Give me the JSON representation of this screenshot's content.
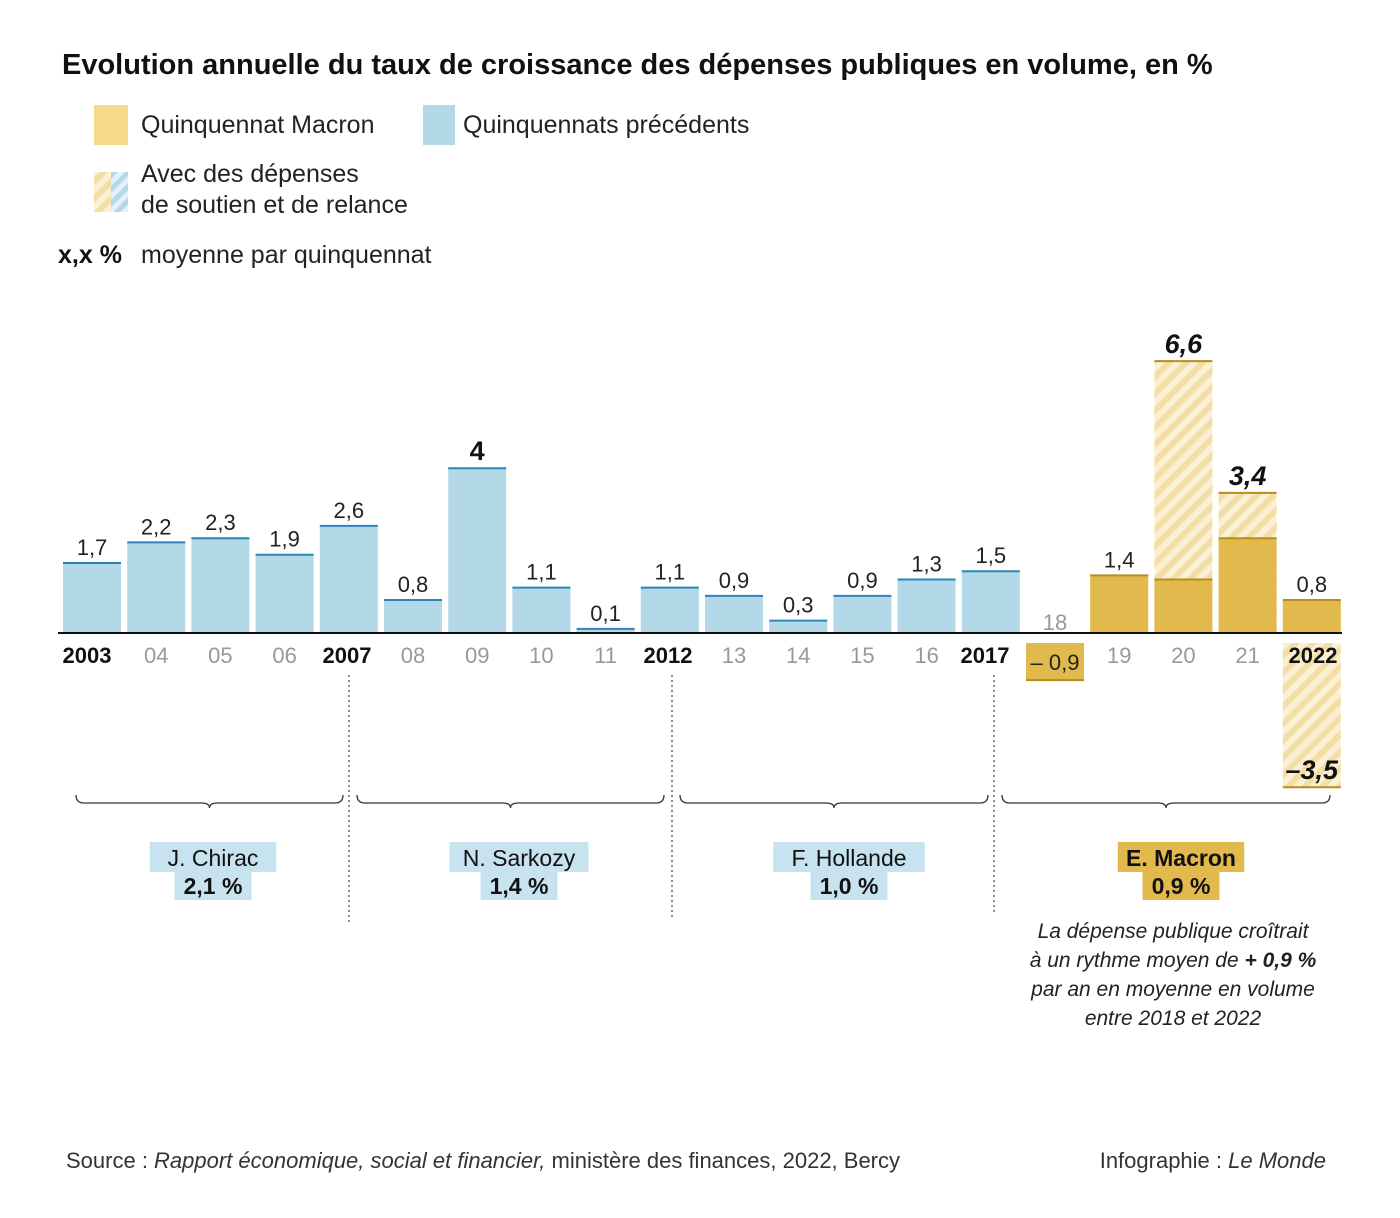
{
  "title": "Evolution annuelle du taux de croissance des dépenses publiques en volume, en %",
  "legend": {
    "macron": "Quinquennat Macron",
    "previous": "Quinquennats précédents",
    "support_line1": "Avec des dépenses",
    "support_line2": "de soutien et de relance",
    "avg_key": "x,x %",
    "avg_text": "moyenne par quinquennat"
  },
  "colors": {
    "previous": "#b3d8e8",
    "previous_line": "#2a86b8",
    "macron": "#e2b94c",
    "macron_light": "#f8e5b6",
    "macron_line": "#b58e1e",
    "tag_previous": "#c6e3ef",
    "tag_macron": "#e2b94c"
  },
  "chart_data": {
    "type": "bar",
    "title": "Evolution annuelle du taux de croissance des dépenses publiques en volume, en %",
    "x": [
      "2003",
      "04",
      "05",
      "06",
      "2007",
      "08",
      "09",
      "10",
      "11",
      "2012",
      "13",
      "14",
      "15",
      "16",
      "2017",
      "18",
      "19",
      "20",
      "21",
      "2022"
    ],
    "major_years": [
      "2003",
      "2007",
      "2012",
      "2017",
      "2022"
    ],
    "series": [
      {
        "name": "Quinquennats précédents",
        "values": [
          1.7,
          2.2,
          2.3,
          1.9,
          2.6,
          0.8,
          4,
          1.1,
          0.1,
          1.1,
          0.9,
          0.3,
          0.9,
          1.3,
          1.5,
          null,
          null,
          null,
          null,
          null
        ],
        "labels": [
          "1,7",
          "2,2",
          "2,3",
          "1,9",
          "2,6",
          "0,8",
          "4",
          "1,1",
          "0,1",
          "1,1",
          "0,9",
          "0,3",
          "0,9",
          "1,3",
          "1,5",
          "",
          "",
          "",
          "",
          ""
        ]
      },
      {
        "name": "Quinquennat Macron",
        "values": [
          null,
          null,
          null,
          null,
          null,
          null,
          null,
          null,
          null,
          null,
          null,
          null,
          null,
          null,
          null,
          -0.9,
          1.4,
          1.3,
          2.3,
          0.8
        ],
        "labels": [
          "",
          "",
          "",
          "",
          "",
          "",
          "",
          "",
          "",
          "",
          "",
          "",
          "",
          "",
          "",
          "– 0,9",
          "1,4",
          "",
          "",
          "0,8"
        ]
      },
      {
        "name": "Avec des dépenses de soutien et de relance",
        "values": [
          null,
          null,
          null,
          null,
          null,
          null,
          null,
          null,
          null,
          null,
          null,
          null,
          null,
          null,
          null,
          null,
          null,
          6.6,
          3.4,
          -3.5
        ],
        "labels": [
          "",
          "",
          "",
          "",
          "",
          "",
          "",
          "",
          "",
          "",
          "",
          "",
          "",
          "",
          "",
          "",
          "",
          "6,6",
          "3,4",
          "–3,5"
        ]
      }
    ],
    "ylim": [
      -3.5,
      6.6
    ],
    "grid": false,
    "presidencies": [
      {
        "name": "J. Chirac",
        "avg": "2,1 %",
        "group": "previous"
      },
      {
        "name": "N. Sarkozy",
        "avg": "1,4 %",
        "group": "previous"
      },
      {
        "name": "F. Hollande",
        "avg": "1,0 %",
        "group": "previous"
      },
      {
        "name": "E. Macron",
        "avg": "0,9 %",
        "group": "macron"
      }
    ],
    "annotation": {
      "line1": "La dépense publique croîtrait",
      "line2a": "à un rythme moyen de ",
      "line2b": "+ 0,9 %",
      "line3": "par an en moyenne en volume",
      "line4": "entre 2018 et 2022"
    }
  },
  "source": {
    "prefix": "Source : ",
    "report": "Rapport économique, social et financier,",
    "rest": " ministère des finances, 2022, Bercy"
  },
  "credit": {
    "prefix": "Infographie : ",
    "name": "Le Monde"
  }
}
